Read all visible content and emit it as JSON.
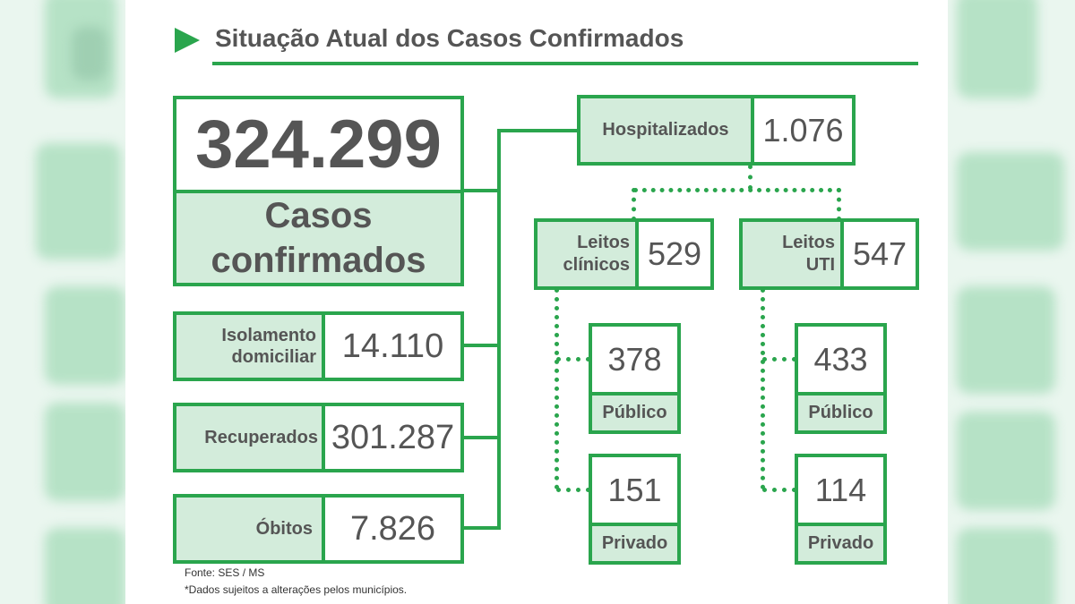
{
  "header": {
    "title": "Situação Atual dos Casos Confirmados"
  },
  "main": {
    "total_value": "324.299",
    "total_label": "Casos confirmados",
    "isolamento": {
      "label_line1": "Isolamento",
      "label_line2": "domiciliar",
      "value": "14.110"
    },
    "recuperados": {
      "label": "Recuperados",
      "value": "301.287"
    },
    "obitos": {
      "label": "Óbitos",
      "value": "7.826"
    }
  },
  "hospital": {
    "label": "Hospitalizados",
    "value": "1.076",
    "clinicos": {
      "label_line1": "Leitos",
      "label_line2": "clínicos",
      "value": "529",
      "publico": {
        "value": "378",
        "label": "Público"
      },
      "privado": {
        "value": "151",
        "label": "Privado"
      }
    },
    "uti": {
      "label_line1": "Leitos",
      "label_line2": "UTI",
      "value": "547",
      "publico": {
        "value": "433",
        "label": "Público"
      },
      "privado": {
        "value": "114",
        "label": "Privado"
      }
    }
  },
  "footer": {
    "source": "Fonte: SES / MS",
    "note": "*Dados sujeitos a alterações pelos municípios."
  },
  "colors": {
    "accent": "#2aa54d",
    "label_fill": "#d3ecdb",
    "text": "#555555"
  }
}
